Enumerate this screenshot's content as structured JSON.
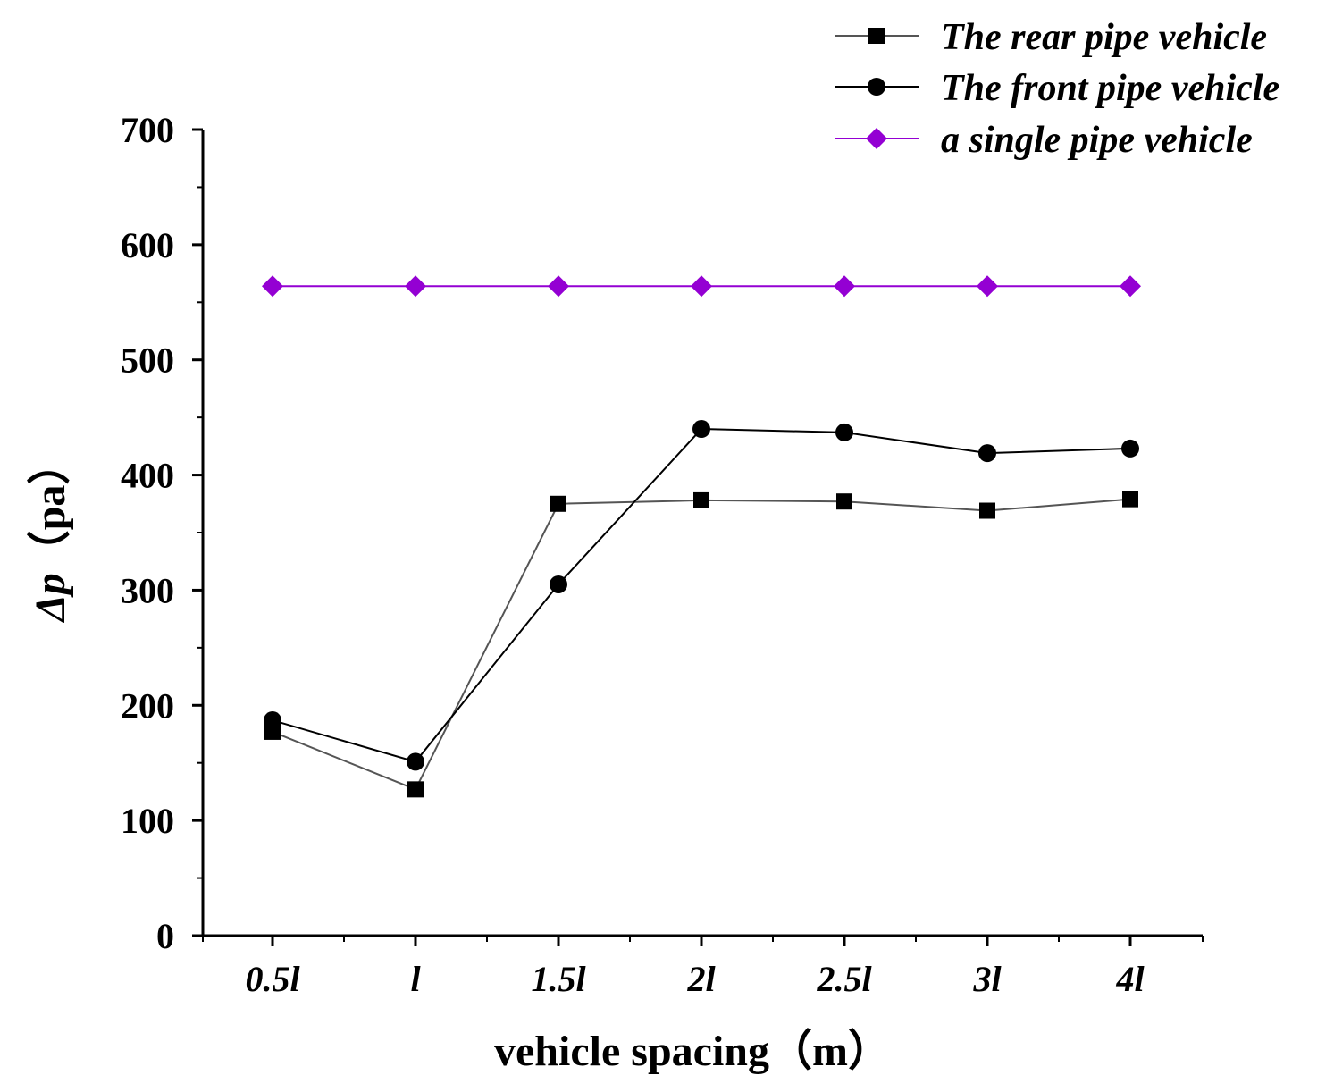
{
  "chart_data": {
    "type": "line",
    "categories": [
      "0.5l",
      "l",
      "1.5l",
      "2l",
      "2.5l",
      "3l",
      "4l"
    ],
    "xlabel": "vehicle spacing（m）",
    "ylabel_symbol": "Δp",
    "ylabel_unit": "（pa）",
    "ylim": [
      0,
      700
    ],
    "yticks": [
      0,
      100,
      200,
      300,
      400,
      500,
      600,
      700
    ],
    "legend_position": "top-right",
    "series": [
      {
        "name": "The rear pipe vehicle",
        "marker": "square",
        "color": "#000000",
        "line_color": "#555555",
        "values": [
          177,
          127,
          375,
          378,
          377,
          369,
          379
        ]
      },
      {
        "name": "The front pipe vehicle",
        "marker": "circle",
        "color": "#000000",
        "line_color": "#000000",
        "values": [
          187,
          151,
          305,
          440,
          437,
          419,
          423
        ]
      },
      {
        "name": "a single pipe vehicle",
        "marker": "diamond",
        "color": "#9400D3",
        "line_color": "#9400D3",
        "values": [
          564,
          564,
          564,
          564,
          564,
          564,
          564
        ]
      }
    ]
  }
}
